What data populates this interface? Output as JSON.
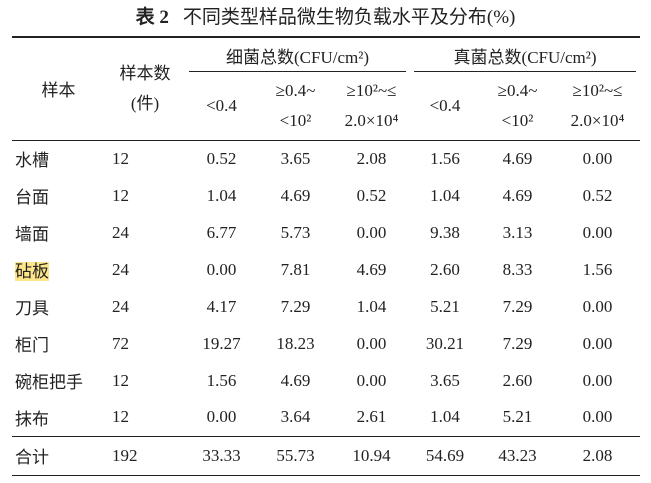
{
  "title": {
    "label": "表 2",
    "text": "不同类型样品微生物负载水平及分布(%)"
  },
  "table": {
    "header": {
      "sample": "样本",
      "count": [
        "样本数",
        "(件)"
      ],
      "groups": [
        "细菌总数(CFU/cm²)",
        "真菌总数(CFU/cm²)"
      ],
      "sub": [
        [
          "<0.4"
        ],
        [
          "≥0.4~",
          "<10²"
        ],
        [
          "≥10²~≤",
          "2.0×10⁴"
        ],
        [
          "<0.4"
        ],
        [
          "≥0.4~",
          "<10²"
        ],
        [
          "≥10²~≤",
          "2.0×10⁴"
        ]
      ]
    },
    "rows": [
      [
        "水槽",
        "12",
        "0.52",
        "3.65",
        "2.08",
        "1.56",
        "4.69",
        "0.00"
      ],
      [
        "台面",
        "12",
        "1.04",
        "4.69",
        "0.52",
        "1.04",
        "4.69",
        "0.52"
      ],
      [
        "墙面",
        "24",
        "6.77",
        "5.73",
        "0.00",
        "9.38",
        "3.13",
        "0.00"
      ],
      [
        "砧板",
        "24",
        "0.00",
        "7.81",
        "4.69",
        "2.60",
        "8.33",
        "1.56"
      ],
      [
        "刀具",
        "24",
        "4.17",
        "7.29",
        "1.04",
        "5.21",
        "7.29",
        "0.00"
      ],
      [
        "柜门",
        "72",
        "19.27",
        "18.23",
        "0.00",
        "30.21",
        "7.29",
        "0.00"
      ],
      [
        "碗柜把手",
        "12",
        "1.56",
        "4.69",
        "0.00",
        "3.65",
        "2.60",
        "0.00"
      ],
      [
        "抹布",
        "12",
        "0.00",
        "3.64",
        "2.61",
        "1.04",
        "5.21",
        "0.00"
      ],
      [
        "合计",
        "192",
        "33.33",
        "55.73",
        "10.94",
        "54.69",
        "43.23",
        "2.08"
      ]
    ]
  }
}
